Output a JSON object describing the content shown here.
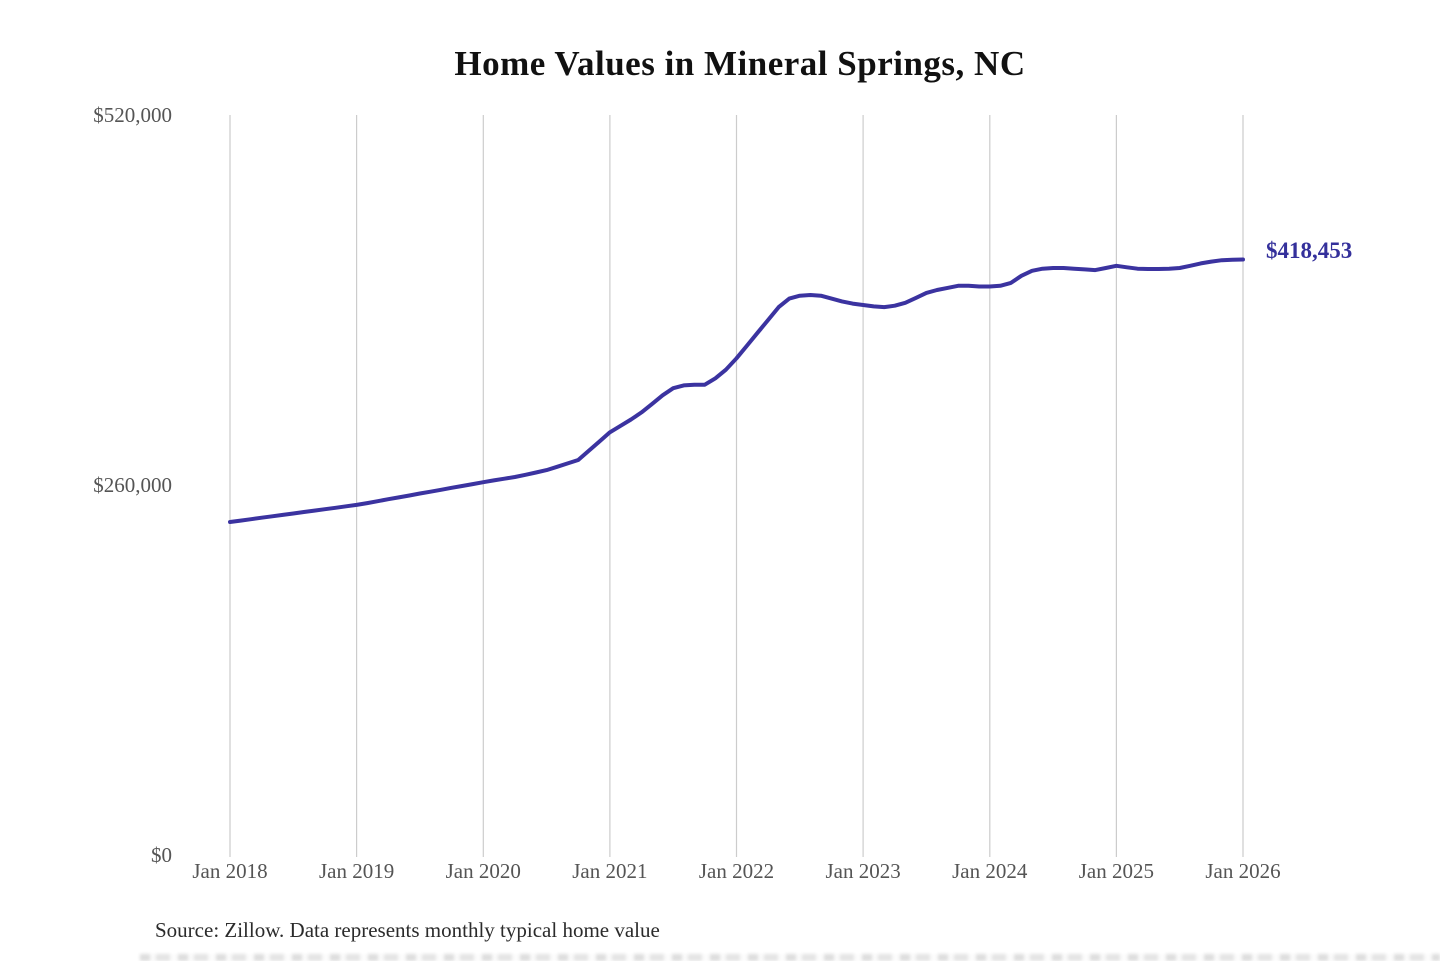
{
  "page": {
    "background": "#ffffff"
  },
  "colors": {
    "line": "#3b33a0",
    "annotation": "#34309b",
    "grid": "#cccccc",
    "axis_text": "#555555",
    "title_text": "#111111",
    "source_text": "#2b2b2b"
  },
  "header": {
    "title": "Home Values in Mineral Springs, NC"
  },
  "annotation": {
    "latest_value_label": "$418,453"
  },
  "footer": {
    "source_note": "Source: Zillow. Data represents monthly typical home value"
  },
  "chart_data": {
    "type": "line",
    "title": "Home Values in Mineral Springs, NC",
    "xlabel": "",
    "ylabel": "",
    "legend": "none",
    "grid": "vertical-only",
    "ylim": [
      0,
      520000
    ],
    "y_ticks": [
      {
        "label": "$0",
        "value": 0
      },
      {
        "label": "$260,000",
        "value": 260000
      },
      {
        "label": "$520,000",
        "value": 520000
      }
    ],
    "x_tick_labels": [
      "Jan 2018",
      "Jan 2019",
      "Jan 2020",
      "Jan 2021",
      "Jan 2022",
      "Jan 2023",
      "Jan 2024",
      "Jan 2025",
      "Jan 2026"
    ],
    "series": [
      {
        "name": "Monthly typical home value",
        "unit": "USD",
        "start_month": "2018-01",
        "end_month": "2026-01",
        "interval": "monthly",
        "final_value": 418453,
        "values": [
          234000,
          235000,
          236000,
          237000,
          238000,
          239000,
          240000,
          241000,
          242000,
          243000,
          244000,
          245000,
          246000,
          247300,
          248600,
          250000,
          251300,
          252600,
          254000,
          255300,
          256600,
          258000,
          259300,
          260600,
          262000,
          263200,
          264400,
          265600,
          267200,
          268800,
          270500,
          272800,
          275200,
          277600,
          284000,
          290500,
          297000,
          301500,
          306000,
          311000,
          317000,
          323000,
          328000,
          330000,
          330500,
          330500,
          335000,
          341000,
          349000,
          358000,
          367000,
          376000,
          385000,
          391000,
          393000,
          393500,
          393000,
          391000,
          389000,
          387500,
          386500,
          385500,
          385000,
          386000,
          388000,
          391500,
          395000,
          397000,
          398500,
          400000,
          400000,
          399500,
          399500,
          400000,
          402000,
          407000,
          410500,
          412000,
          412500,
          412500,
          412000,
          411500,
          411000,
          412500,
          414000,
          413000,
          412000,
          411800,
          411800,
          412000,
          412500,
          414000,
          415700,
          417000,
          418000,
          418300,
          418453
        ]
      }
    ]
  }
}
